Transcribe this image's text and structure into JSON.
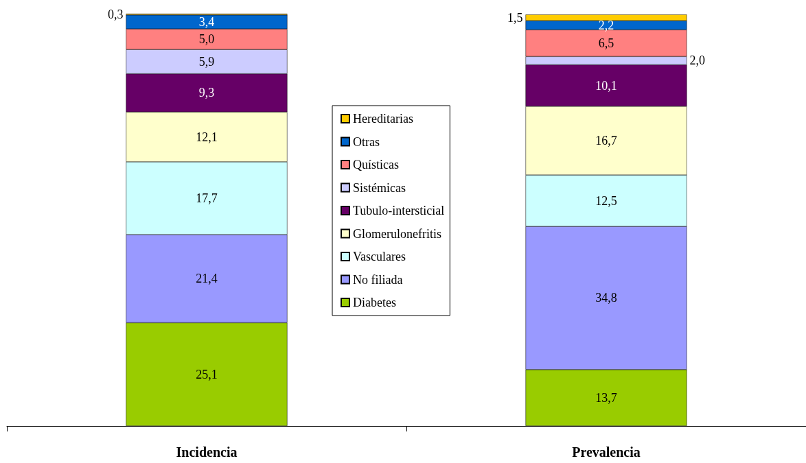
{
  "chart_data": {
    "type": "bar",
    "stacked": true,
    "legend": "center",
    "grid": false,
    "categories": [
      "Incidencia",
      "Prevalencia"
    ],
    "series": [
      {
        "name": "Diabetes",
        "color": "#99cc00",
        "values": [
          25.1,
          13.7
        ],
        "value_labels": [
          "25,1",
          "13,7"
        ]
      },
      {
        "name": "No filiada",
        "color": "#9999ff",
        "values": [
          21.4,
          34.8
        ],
        "value_labels": [
          "21,4",
          "34,8"
        ]
      },
      {
        "name": "Vasculares",
        "color": "#ccffff",
        "values": [
          17.7,
          12.5
        ],
        "value_labels": [
          "17,7",
          "12,5"
        ]
      },
      {
        "name": "Glomerulonefritis",
        "color": "#ffffcc",
        "values": [
          12.1,
          16.7
        ],
        "value_labels": [
          "12,1",
          "16,7"
        ]
      },
      {
        "name": "Tubulo-intersticial",
        "color": "#660066",
        "values": [
          9.3,
          10.1
        ],
        "value_labels": [
          "9,3",
          "10,1"
        ]
      },
      {
        "name": "Sistémicas",
        "color": "#ccccff",
        "values": [
          5.9,
          2.0
        ],
        "value_labels": [
          "5,9",
          "2,0"
        ]
      },
      {
        "name": "Quísticas",
        "color": "#ff8080",
        "values": [
          5.0,
          6.5
        ],
        "value_labels": [
          "5,0",
          "6,5"
        ]
      },
      {
        "name": "Otras",
        "color": "#0066cc",
        "values": [
          3.4,
          2.2
        ],
        "value_labels": [
          "3,4",
          "2,2"
        ]
      },
      {
        "name": "Hereditarias",
        "color": "#ffcc00",
        "values": [
          0.3,
          1.5
        ],
        "value_labels": [
          "0,3",
          "1,5"
        ]
      }
    ]
  }
}
